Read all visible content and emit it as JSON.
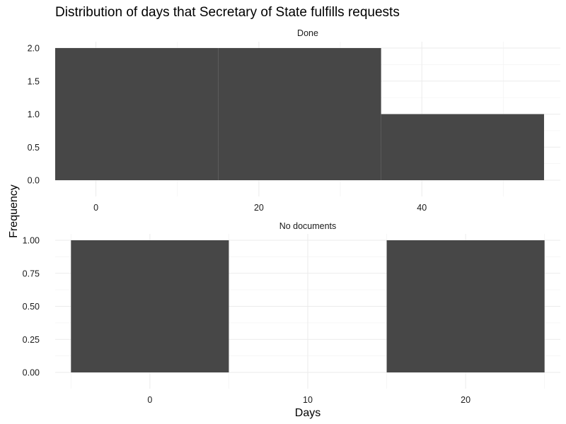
{
  "chart_data": {
    "type": "bar",
    "title": "Distribution of days that Secretary of State fulfills requests",
    "xlabel": "Days",
    "ylabel": "Frequency",
    "grid": true,
    "legend": "none",
    "bar_color": "#474747",
    "facets": [
      {
        "name": "Done",
        "xlim": [
          -5,
          57
        ],
        "ylim": [
          0,
          2
        ],
        "x_ticks": [
          0,
          20,
          40
        ],
        "y_ticks": [
          0.0,
          0.5,
          1.0,
          1.5,
          2.0
        ],
        "y_tick_labels": [
          "0.0",
          "0.5",
          "1.0",
          "1.5",
          "2.0"
        ],
        "bins": [
          {
            "start": -5,
            "end": 15,
            "count": 2
          },
          {
            "start": 15,
            "end": 35,
            "count": 2
          },
          {
            "start": 35,
            "end": 55,
            "count": 1
          }
        ]
      },
      {
        "name": "No documents",
        "xlim": [
          -6,
          26
        ],
        "ylim": [
          0,
          1
        ],
        "x_ticks": [
          0,
          10,
          20
        ],
        "y_ticks": [
          0.0,
          0.25,
          0.5,
          0.75,
          1.0
        ],
        "y_tick_labels": [
          "0.00",
          "0.25",
          "0.50",
          "0.75",
          "1.00"
        ],
        "bins": [
          {
            "start": -5,
            "end": 5,
            "count": 1
          },
          {
            "start": 5,
            "end": 15,
            "count": 0
          },
          {
            "start": 15,
            "end": 25,
            "count": 1
          }
        ]
      }
    ]
  }
}
